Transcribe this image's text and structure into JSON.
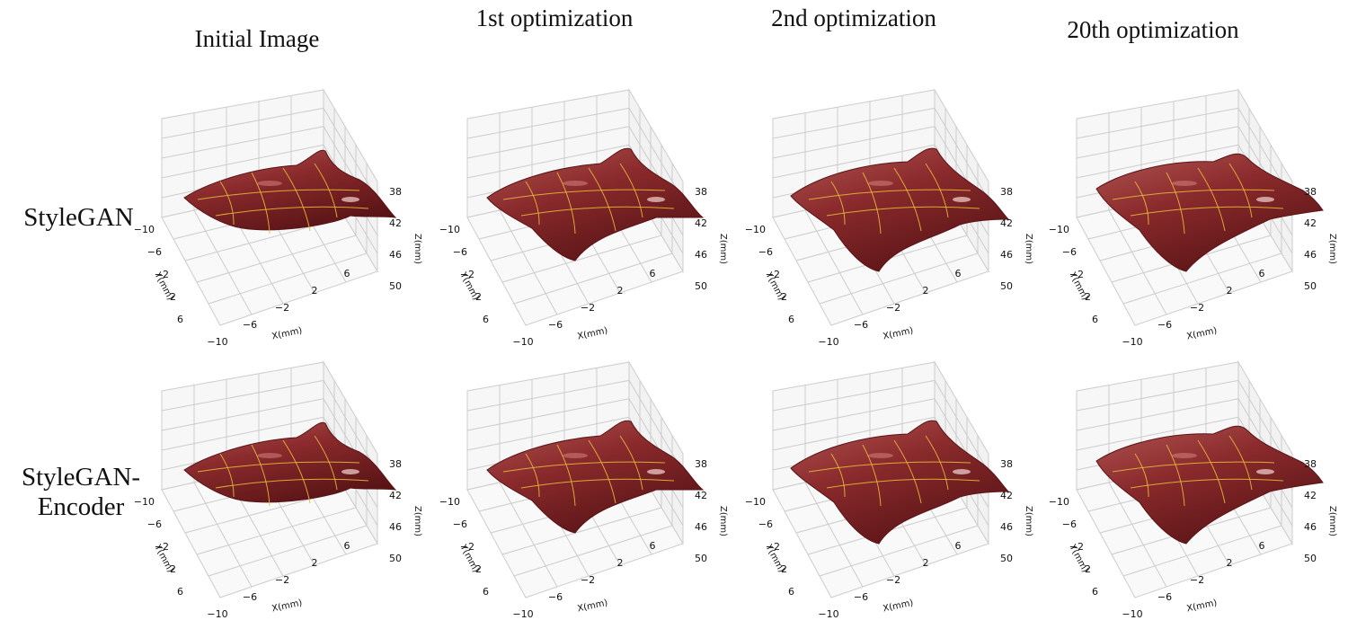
{
  "columns": [
    {
      "title": "Initial Image"
    },
    {
      "title": "1st optimization"
    },
    {
      "title": "2nd optimization"
    },
    {
      "title": "20th optimization"
    }
  ],
  "rows": [
    {
      "label": "StyleGAN"
    },
    {
      "label": "StyleGAN-Encoder"
    }
  ],
  "axes": {
    "x_label": "X(mm)",
    "y_label": "Y(mm)",
    "z_label": "Z(mm)",
    "x_ticks": [
      "−10",
      "−6",
      "−2",
      "2",
      "6"
    ],
    "y_ticks": [
      "−10",
      "−6",
      "−2",
      "2",
      "6"
    ],
    "z_ticks": [
      "38",
      "42",
      "46",
      "50"
    ]
  },
  "colors": {
    "surface_dark": "#5a1416",
    "surface_mid": "#8a2a2c",
    "surface_light": "#b35553",
    "grid_line": "#e6b83a",
    "pane_line": "#cccccc"
  }
}
